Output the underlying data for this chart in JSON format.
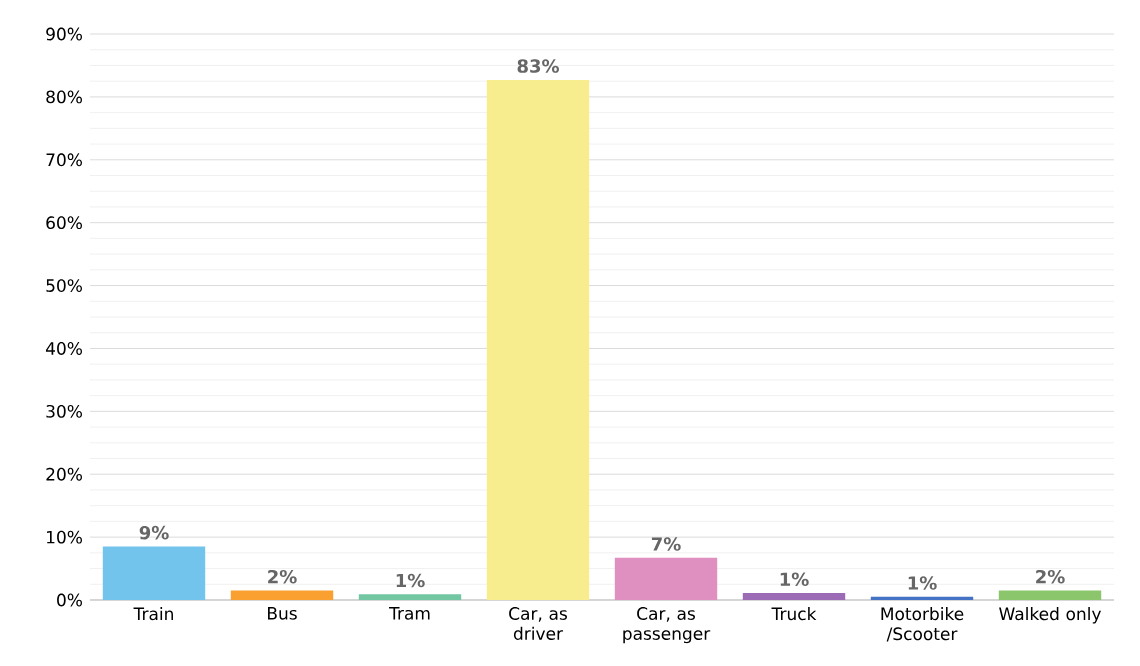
{
  "chart_data": {
    "type": "bar",
    "categories": [
      "Train",
      "Bus",
      "Tram",
      "Car, as driver",
      "Car, as passenger",
      "Truck",
      "Motorbike /Scooter",
      "Walked only"
    ],
    "values": [
      8.5,
      1.5,
      0.9,
      82.7,
      6.7,
      1.1,
      0.5,
      1.5
    ],
    "colors": [
      "#72c4ec",
      "#f9a030",
      "#72c6a2",
      "#f7ed8f",
      "#e090c0",
      "#9b6bb5",
      "#4472c4",
      "#8cc66c"
    ],
    "value_labels": [
      "9%",
      "2%",
      "1%",
      "83%",
      "7%",
      "1%",
      "1%",
      "2%"
    ],
    "ylim": [
      0,
      90
    ],
    "yticks": [
      {
        "value": 0,
        "label": "0%"
      },
      {
        "value": 10,
        "label": "10%"
      },
      {
        "value": 20,
        "label": "20%"
      },
      {
        "value": 30,
        "label": "30%"
      },
      {
        "value": 40,
        "label": "40%"
      },
      {
        "value": 50,
        "label": "50%"
      },
      {
        "value": 60,
        "label": "60%"
      },
      {
        "value": 70,
        "label": "70%"
      },
      {
        "value": 80,
        "label": "80%"
      },
      {
        "value": 90,
        "label": "90%"
      }
    ],
    "grid": "y"
  }
}
